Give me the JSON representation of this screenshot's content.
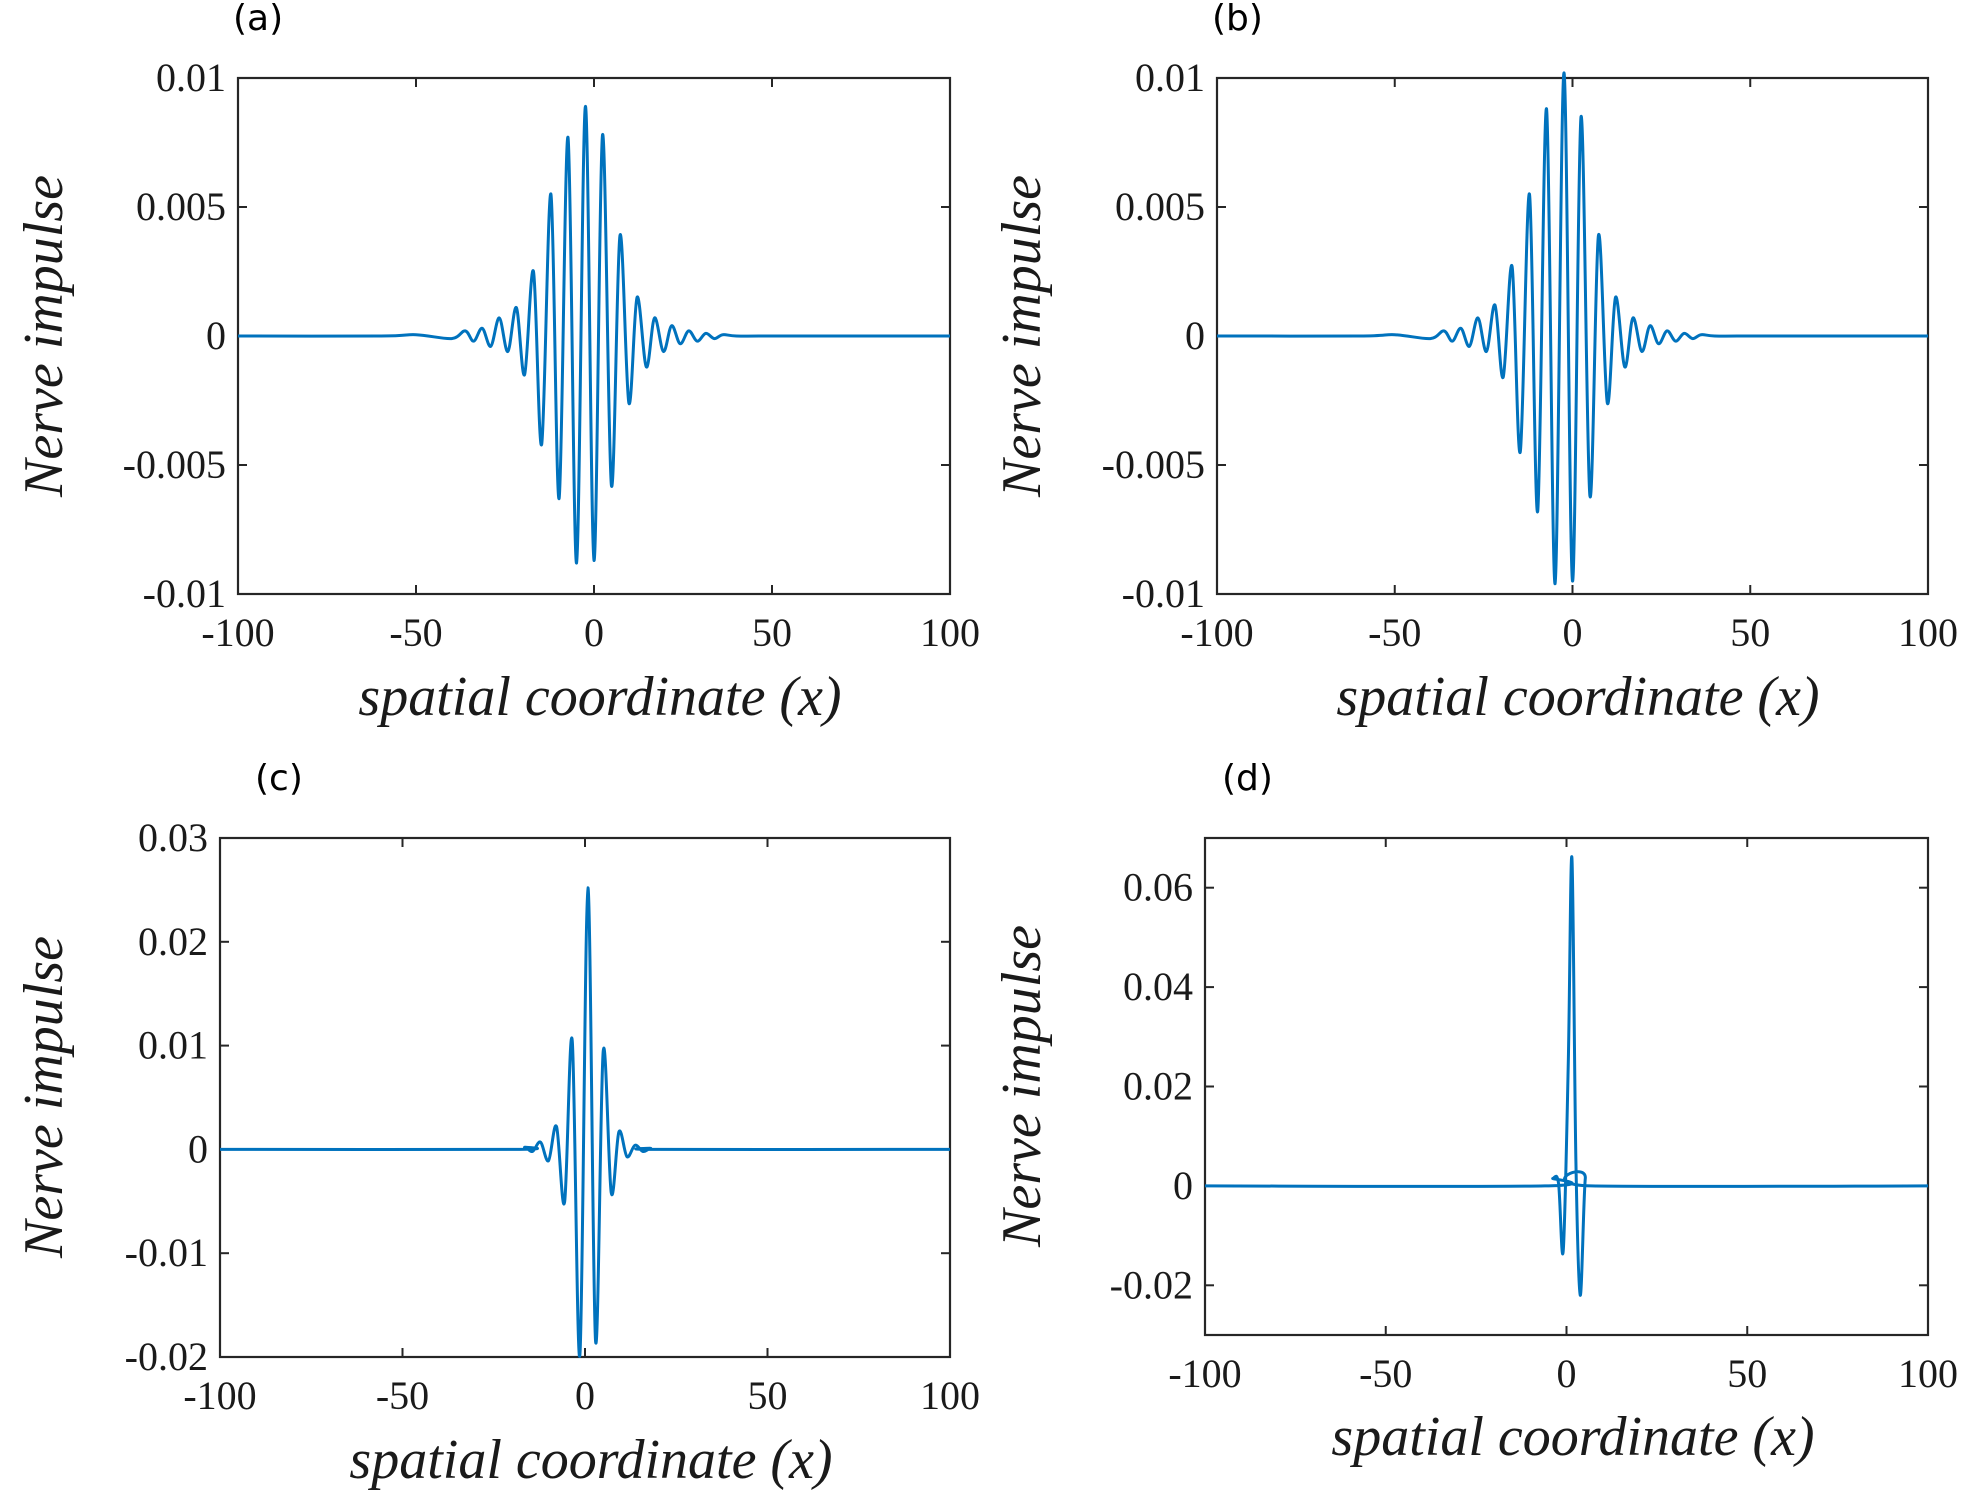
{
  "chart_data": [
    {
      "type": "line",
      "panel_label": "(a)",
      "title": "",
      "xlabel": "spatial coordinate (x)",
      "ylabel": "Nerve impulse",
      "xlim": [
        -100,
        100
      ],
      "ylim": [
        -0.01,
        0.01
      ],
      "xticks": [
        -100,
        -50,
        0,
        50,
        100
      ],
      "xtick_labels": [
        "-100",
        "-50",
        "0",
        "50",
        "100"
      ],
      "yticks": [
        -0.01,
        -0.005,
        0,
        0.005,
        0.01
      ],
      "ytick_labels": [
        "-0.01",
        "-0.005",
        "0",
        "0.005",
        "0.01"
      ],
      "grid": false,
      "color": "#0072bd",
      "series": [
        {
          "name": "Nerve impulse",
          "x": [
            -100,
            -60,
            -50,
            -40,
            -36.2,
            -33.8,
            -31.4,
            -29.0,
            -26.6,
            -24.2,
            -21.8,
            -19.5,
            -17.0,
            -14.7,
            -12.1,
            -9.8,
            -7.3,
            -4.9,
            -2.4,
            0,
            2.4,
            4.9,
            7.3,
            9.8,
            12.1,
            14.7,
            17.0,
            19.5,
            21.8,
            24.2,
            26.6,
            29.0,
            31.4,
            33.8,
            36.2,
            40,
            50,
            60,
            100
          ],
          "y": [
            0,
            0,
            5e-05,
            -0.0001,
            0.0002,
            -0.0002,
            0.0003,
            -0.0004,
            0.0007,
            -0.0006,
            0.0011,
            -0.0015,
            0.0025,
            -0.0042,
            0.0055,
            -0.0063,
            0.0077,
            -0.0088,
            0.0089,
            -0.0087,
            0.0078,
            -0.0058,
            0.0039,
            -0.0026,
            0.0015,
            -0.0012,
            0.0007,
            -0.0006,
            0.0004,
            -0.0003,
            0.0002,
            -0.0002,
            0.0001,
            -0.0001,
            5e-05,
            0,
            0,
            0,
            0
          ]
        }
      ]
    },
    {
      "type": "line",
      "panel_label": "(b)",
      "title": "",
      "xlabel": "spatial coordinate (x)",
      "ylabel": "Nerve impulse",
      "xlim": [
        -100,
        100
      ],
      "ylim": [
        -0.01,
        0.01
      ],
      "xticks": [
        -100,
        -50,
        0,
        50,
        100
      ],
      "xtick_labels": [
        "-100",
        "-50",
        "0",
        "50",
        "100"
      ],
      "yticks": [
        -0.01,
        -0.005,
        0,
        0.005,
        0.01
      ],
      "ytick_labels": [
        "-0.01",
        "-0.005",
        "0",
        "0.005",
        "0.01"
      ],
      "grid": false,
      "color": "#0072bd",
      "series": [
        {
          "name": "Nerve impulse",
          "x": [
            -100,
            -60,
            -50,
            -40,
            -36.2,
            -33.8,
            -31.4,
            -29.0,
            -26.6,
            -24.2,
            -21.8,
            -19.5,
            -17.0,
            -14.7,
            -12.1,
            -9.8,
            -7.3,
            -4.9,
            -2.4,
            0,
            2.4,
            4.9,
            7.3,
            9.8,
            12.1,
            14.7,
            17.0,
            19.5,
            21.8,
            24.2,
            26.6,
            29.0,
            31.4,
            33.8,
            36.2,
            40,
            50,
            60,
            100
          ],
          "y": [
            0,
            0,
            5e-05,
            -0.0001,
            0.0002,
            -0.0002,
            0.0003,
            -0.0004,
            0.0007,
            -0.0006,
            0.0012,
            -0.0016,
            0.0027,
            -0.0045,
            0.0055,
            -0.0068,
            0.0088,
            -0.0096,
            0.0102,
            -0.0095,
            0.0085,
            -0.0062,
            0.0039,
            -0.0026,
            0.0015,
            -0.0012,
            0.0007,
            -0.0006,
            0.0004,
            -0.0003,
            0.0002,
            -0.0002,
            0.0001,
            -0.0001,
            5e-05,
            0,
            0,
            0,
            0
          ]
        }
      ]
    },
    {
      "type": "line",
      "panel_label": "(c)",
      "title": "",
      "xlabel": "spatial coordinate (x)",
      "ylabel": "Nerve impulse",
      "xlim": [
        -100,
        100
      ],
      "ylim": [
        -0.02,
        0.03
      ],
      "xticks": [
        -100,
        -50,
        0,
        50,
        100
      ],
      "xtick_labels": [
        "-100",
        "-50",
        "0",
        "50",
        "100"
      ],
      "yticks": [
        -0.02,
        -0.01,
        0,
        0.01,
        0.02,
        0.03
      ],
      "ytick_labels": [
        "-0.02",
        "-0.01",
        "0",
        "0.01",
        "0.02",
        "0.03"
      ],
      "grid": false,
      "color": "#0072bd",
      "series": [
        {
          "name": "Nerve impulse",
          "x": [
            -100,
            -20,
            -16.5,
            -14.4,
            -12.2,
            -10.0,
            -7.8,
            -5.6,
            -3.5,
            -1.4,
            0.8,
            2.9,
            5.0,
            7.2,
            9.3,
            11.5,
            13.7,
            15.9,
            18.0,
            20.5,
            100
          ],
          "y": [
            0,
            0,
            0.0002,
            -0.0002,
            0.0007,
            -0.0011,
            0.0022,
            -0.0051,
            0.0105,
            -0.0198,
            0.0252,
            -0.0185,
            0.0095,
            -0.0042,
            0.0017,
            -0.0007,
            0.0004,
            -0.0002,
            0.0001,
            0,
            0
          ]
        }
      ]
    },
    {
      "type": "line",
      "panel_label": "(d)",
      "title": "",
      "xlabel": "spatial coordinate (x)",
      "ylabel": "Nerve impulse",
      "xlim": [
        -100,
        100
      ],
      "ylim": [
        -0.03,
        0.07
      ],
      "xticks": [
        -100,
        -50,
        0,
        50,
        100
      ],
      "xtick_labels": [
        "-100",
        "-50",
        "0",
        "50",
        "100"
      ],
      "yticks": [
        -0.02,
        0,
        0.02,
        0.04,
        0.06
      ],
      "ytick_labels": [
        "-0.02",
        "0",
        "0.02",
        "0.04",
        "0.06"
      ],
      "grid": false,
      "color": "#0072bd",
      "series": [
        {
          "name": "Nerve impulse",
          "x": [
            -100,
            -6,
            -3.8,
            -2.2,
            -0.9,
            0.5,
            1.5,
            2.6,
            3.8,
            5.2,
            6.8,
            100
          ],
          "y": [
            0,
            0,
            0.0015,
            0.0005,
            -0.013,
            0.025,
            0.066,
            0.005,
            -0.022,
            0.0015,
            0,
            0
          ]
        }
      ]
    }
  ]
}
